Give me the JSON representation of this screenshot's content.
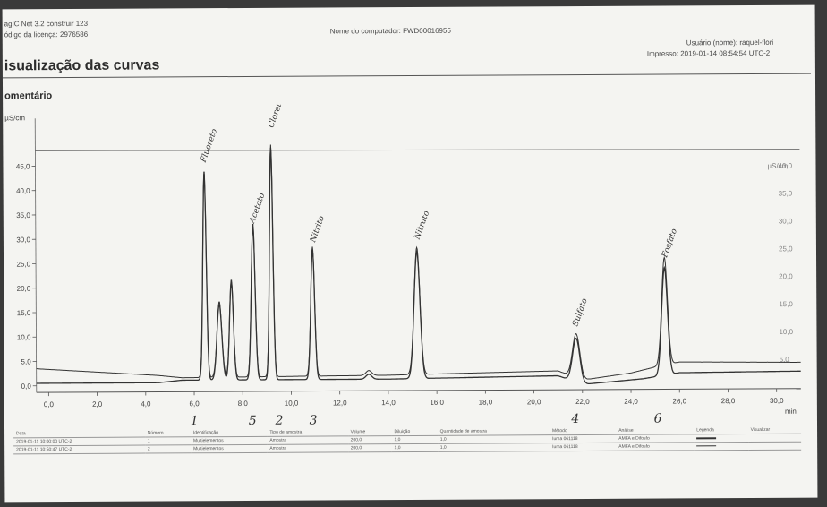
{
  "header": {
    "software": "agIC Net 3.2 construir 123",
    "license": "ódigo da licença: 2976586",
    "computer": "Nome do computador: FWD00016955",
    "user": "Usuário (nome): raquel-flori",
    "printed": "Impresso: 2019-01-14 08:54:54 UTC-2",
    "title": "isualização das curvas",
    "comment": "omentário"
  },
  "colors": {
    "trace": "#333333",
    "paper": "#f4f4f1",
    "ink": "#444444"
  },
  "chart_data": {
    "type": "line",
    "y_left_unit": "µS/cm",
    "y_right_unit": "µS/cm",
    "x_unit": "min",
    "xlim": [
      -0.5,
      31
    ],
    "ylim_left": [
      -1,
      50
    ],
    "ylim_right": [
      0,
      45
    ],
    "x_ticks": [
      "0,0",
      "2,0",
      "4,0",
      "6,0",
      "8,0",
      "10,0",
      "12,0",
      "14,0",
      "16,0",
      "18,0",
      "20,0",
      "22,0",
      "24,0",
      "26,0",
      "28,0",
      "30,0"
    ],
    "y_ticks_left": [
      "0,0",
      "5,0",
      "10,0",
      "15,0",
      "20,0",
      "25,0",
      "30,0",
      "35,0",
      "40,0",
      "45,0"
    ],
    "y_ticks_right": [
      "5,0",
      "10,0",
      "15,0",
      "20,0",
      "25,0",
      "30,0",
      "35,0",
      "40,0"
    ],
    "grid": false,
    "peaks": [
      {
        "t": 6.45,
        "h": 42.5,
        "w": 0.07
      },
      {
        "t": 7.05,
        "h": 15.5,
        "w": 0.1
      },
      {
        "t": 7.55,
        "h": 20.0,
        "w": 0.08
      },
      {
        "t": 8.45,
        "h": 31.5,
        "w": 0.08
      },
      {
        "t": 9.2,
        "h": 47.5,
        "w": 0.07
      },
      {
        "t": 10.9,
        "h": 26.5,
        "w": 0.08
      },
      {
        "t": 13.2,
        "h": 1.0,
        "w": 0.12
      },
      {
        "t": 15.2,
        "h": 26.0,
        "w": 0.12
      },
      {
        "t": 21.75,
        "h": 9.0,
        "w": 0.15
      },
      {
        "t": 25.4,
        "h": 22.0,
        "w": 0.12
      }
    ],
    "series": [
      {
        "baseline": [
          [
            -0.5,
            0.5
          ],
          [
            4.5,
            0.5
          ],
          [
            5.5,
            1.0
          ],
          [
            14,
            1.0
          ],
          [
            21,
            1.5
          ],
          [
            22,
            -0.3
          ],
          [
            24.5,
            0.8
          ],
          [
            26,
            2.0
          ],
          [
            31,
            2.2
          ]
        ]
      },
      {
        "baseline": [
          [
            -0.5,
            3.5
          ],
          [
            4.5,
            2.0
          ],
          [
            5.5,
            1.5
          ],
          [
            14,
            1.8
          ],
          [
            21,
            2.5
          ],
          [
            22,
            0.6
          ],
          [
            24,
            2.0
          ],
          [
            25,
            3.2
          ],
          [
            26,
            4.2
          ],
          [
            31,
            4.0
          ]
        ]
      }
    ],
    "peak_labels": [
      {
        "text": "Fluoreto",
        "t": 6.5,
        "y": 45.5
      },
      {
        "text": "Cloreto",
        "t": 9.3,
        "y": 52.5
      },
      {
        "text": "Acetato",
        "t": 8.5,
        "y": 33.0
      },
      {
        "text": "Nitrito",
        "t": 11.0,
        "y": 29.0
      },
      {
        "text": "Nitrato",
        "t": 15.3,
        "y": 29.5
      },
      {
        "text": "Sulfato",
        "t": 21.8,
        "y": 11.5
      },
      {
        "text": "Fosfato",
        "t": 25.5,
        "y": 25.5
      }
    ],
    "peak_numbers": [
      {
        "text": "1",
        "t": 6.0
      },
      {
        "text": "5",
        "t": 8.4
      },
      {
        "text": "2",
        "t": 9.5
      },
      {
        "text": "3",
        "t": 10.9
      },
      {
        "text": "4",
        "t": 21.7
      },
      {
        "text": "6",
        "t": 25.1
      }
    ]
  },
  "table": {
    "headers": [
      "Data",
      "Número",
      "Identificação",
      "Tipo de amostra",
      "Volume",
      "Diluição",
      "Quantidade de amostra",
      "Método",
      "Análise",
      "Legenda",
      "Visualizar"
    ],
    "rows": [
      [
        "2019-01-11 10:00:00 UTC-2",
        "1",
        "Multielementos",
        "Amostra",
        "200,0",
        "1,0",
        "1,0",
        "Iuma 061118",
        "AMFA e Difosfo",
        "",
        ""
      ],
      [
        "2019-01-11 10:50:47 UTC-2",
        "2",
        "Multielementos",
        "Amostra",
        "200,0",
        "1,0",
        "1,0",
        "Iuma 061118",
        "AMFA e Difosfo",
        "",
        ""
      ]
    ]
  }
}
